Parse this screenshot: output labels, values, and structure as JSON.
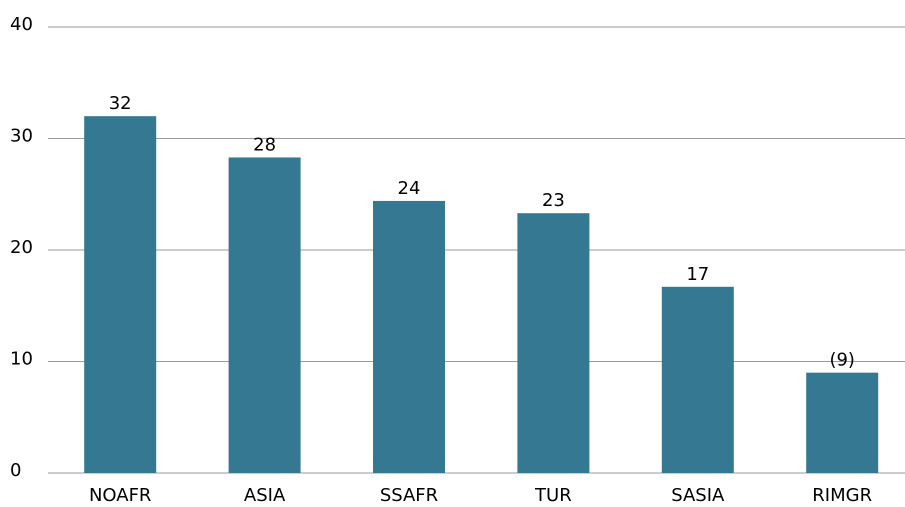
{
  "chart_data": {
    "type": "bar",
    "categories": [
      "NOAFR",
      "ASIA",
      "SSAFR",
      "TUR",
      "SASIA",
      "RIMGR"
    ],
    "values": [
      32.0,
      28.3,
      24.4,
      23.3,
      16.7,
      9.0
    ],
    "value_labels": [
      "32",
      "28",
      "24",
      "23",
      "17",
      "(9)"
    ],
    "color": "#347891",
    "ylim": [
      0,
      40
    ],
    "yticks": [
      0,
      10,
      20,
      30,
      40
    ],
    "grid": true
  }
}
